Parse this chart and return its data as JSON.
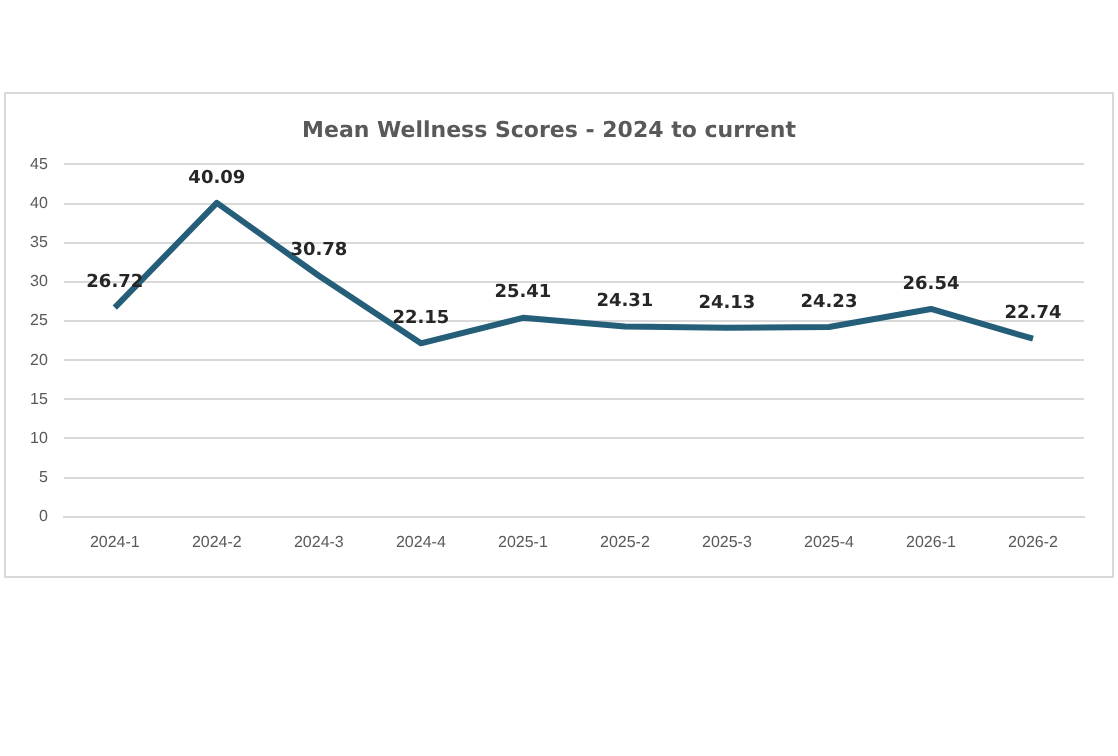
{
  "chart_data": {
    "type": "line",
    "title": "Mean Wellness Scores - 2024 to current",
    "categories": [
      "2024-1",
      "2024-2",
      "2024-3",
      "2024-4",
      "2025-1",
      "2025-2",
      "2025-3",
      "2025-4",
      "2026-1",
      "2026-2"
    ],
    "series": [
      {
        "color": "#255e79",
        "values": [
          26.72,
          40.09,
          30.78,
          22.15,
          25.41,
          24.31,
          24.13,
          24.23,
          26.54,
          22.74
        ]
      }
    ],
    "ylim": [
      0,
      45
    ],
    "yticks": [
      0,
      5,
      10,
      15,
      20,
      25,
      30,
      35,
      40,
      45
    ],
    "grid": "y",
    "legend": false,
    "marker": "none",
    "line_style": "solid",
    "data_labels": true
  }
}
